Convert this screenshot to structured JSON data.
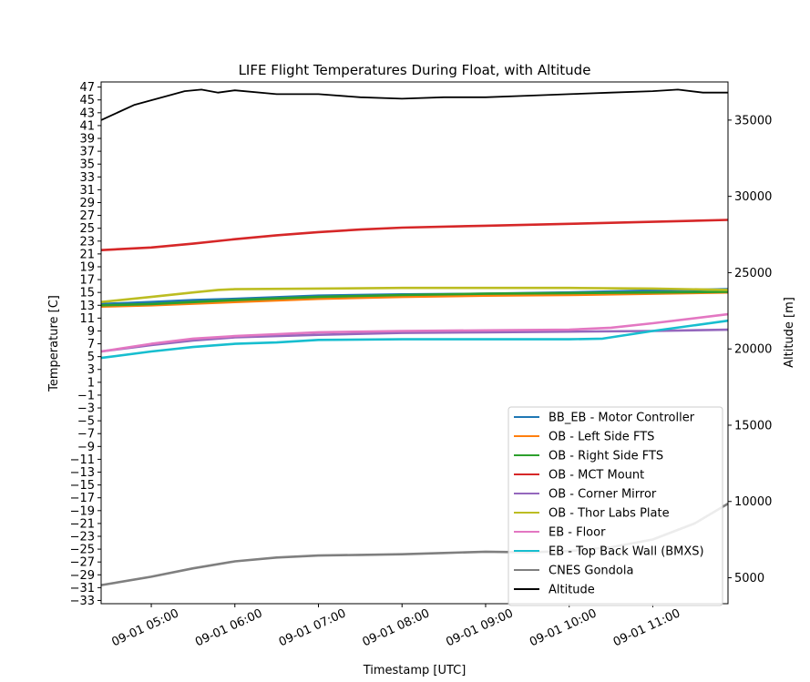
{
  "chart_data": {
    "type": "line",
    "title": "LIFE Flight Temperatures During Float, with Altitude",
    "xlabel": "Timestamp [UTC]",
    "ylabel": "Temperature [C]",
    "y2label": "Altitude [m]",
    "xlim_hours": [
      4.4,
      11.9
    ],
    "ylim": [
      -33.5,
      47.8
    ],
    "y2lim": [
      3300,
      37500
    ],
    "x_ticks": [
      {
        "h": 5,
        "label": "09-01 05:00"
      },
      {
        "h": 6,
        "label": "09-01 06:00"
      },
      {
        "h": 7,
        "label": "09-01 07:00"
      },
      {
        "h": 8,
        "label": "09-01 08:00"
      },
      {
        "h": 9,
        "label": "09-01 09:00"
      },
      {
        "h": 10,
        "label": "09-01 10:00"
      },
      {
        "h": 11,
        "label": "09-01 11:00"
      }
    ],
    "y_ticks": [
      47,
      45,
      43,
      41,
      39,
      37,
      35,
      33,
      31,
      29,
      27,
      25,
      23,
      21,
      19,
      17,
      15,
      13,
      11,
      9,
      7,
      5,
      3,
      1,
      -1,
      -3,
      -5,
      -7,
      -9,
      -11,
      -13,
      -15,
      -17,
      -19,
      -21,
      -23,
      -25,
      -27,
      -29,
      -31,
      -33
    ],
    "y_tick_labels": [
      "47",
      "45",
      "43",
      "41",
      "39",
      "37",
      "35",
      "33",
      "31",
      "29",
      "27",
      "25",
      "23",
      "21",
      "19",
      "17",
      "15",
      "13",
      "11",
      "9",
      "7",
      "5",
      "3",
      "1",
      "−1",
      "−3",
      "−5",
      "−7",
      "−9",
      "−11",
      "−13",
      "−15",
      "−17",
      "−19",
      "−21",
      "−23",
      "−25",
      "−27",
      "−29",
      "−31",
      "−33"
    ],
    "y2_ticks": [
      5000,
      10000,
      15000,
      20000,
      25000,
      30000,
      35000
    ],
    "y2_tick_labels": [
      "5000",
      "10000",
      "15000",
      "20000",
      "25000",
      "30000",
      "35000"
    ],
    "legend_position": "lower-right",
    "series": [
      {
        "name": "BB_EB - Motor Controller",
        "color": "#1f77b4",
        "axis": "left",
        "x": [
          4.4,
          5.0,
          5.5,
          6.0,
          7.0,
          8.0,
          9.0,
          10.0,
          11.0,
          11.9
        ],
        "y": [
          13.2,
          13.5,
          13.8,
          14.0,
          14.5,
          14.7,
          14.8,
          15.0,
          15.3,
          15.5
        ]
      },
      {
        "name": "OB - Left Side FTS",
        "color": "#ff7f0e",
        "axis": "left",
        "x": [
          4.4,
          5.0,
          6.0,
          7.0,
          8.0,
          9.0,
          10.0,
          11.0,
          11.9
        ],
        "y": [
          12.8,
          13.0,
          13.5,
          14.0,
          14.3,
          14.5,
          14.6,
          14.8,
          15.0
        ]
      },
      {
        "name": "OB - Right Side FTS",
        "color": "#2ca02c",
        "axis": "left",
        "x": [
          4.4,
          5.0,
          6.0,
          7.0,
          8.0,
          9.0,
          10.0,
          11.0,
          11.9
        ],
        "y": [
          13.0,
          13.2,
          13.8,
          14.3,
          14.6,
          14.8,
          14.9,
          15.0,
          15.1
        ]
      },
      {
        "name": "OB - MCT Mount",
        "color": "#d62728",
        "axis": "left",
        "x": [
          4.4,
          5.0,
          5.5,
          6.0,
          6.5,
          7.0,
          7.5,
          8.0,
          9.0,
          10.0,
          11.0,
          11.9
        ],
        "y": [
          21.6,
          22.0,
          22.6,
          23.3,
          23.9,
          24.4,
          24.8,
          25.1,
          25.4,
          25.7,
          26.0,
          26.3
        ]
      },
      {
        "name": "OB - Corner Mirror",
        "color": "#9467bd",
        "axis": "left",
        "x": [
          4.4,
          5.0,
          5.5,
          6.0,
          6.5,
          7.0,
          8.0,
          9.0,
          10.0,
          11.0,
          11.9
        ],
        "y": [
          5.8,
          6.8,
          7.5,
          8.0,
          8.2,
          8.4,
          8.7,
          8.8,
          8.9,
          9.0,
          9.2
        ]
      },
      {
        "name": "OB - Thor Labs Plate",
        "color": "#bcbd22",
        "axis": "left",
        "x": [
          4.4,
          5.0,
          5.5,
          5.8,
          6.0,
          7.0,
          8.0,
          9.0,
          10.0,
          11.0,
          11.9
        ],
        "y": [
          13.5,
          14.3,
          15.0,
          15.4,
          15.5,
          15.6,
          15.7,
          15.7,
          15.7,
          15.6,
          15.4
        ]
      },
      {
        "name": "EB - Floor",
        "color": "#e377c2",
        "axis": "left",
        "x": [
          4.4,
          5.0,
          5.5,
          6.0,
          6.5,
          7.0,
          8.0,
          9.0,
          10.0,
          10.5,
          11.0,
          11.9
        ],
        "y": [
          5.8,
          7.0,
          7.8,
          8.2,
          8.5,
          8.8,
          9.0,
          9.1,
          9.2,
          9.5,
          10.2,
          11.6
        ]
      },
      {
        "name": "EB - Top Back Wall (BMXS)",
        "color": "#17becf",
        "axis": "left",
        "x": [
          4.4,
          5.0,
          5.5,
          6.0,
          6.5,
          7.0,
          8.0,
          9.0,
          10.0,
          10.4,
          11.0,
          11.9
        ],
        "y": [
          4.8,
          5.8,
          6.5,
          7.0,
          7.2,
          7.6,
          7.7,
          7.7,
          7.7,
          7.8,
          9.0,
          10.6
        ]
      },
      {
        "name": "CNES Gondola",
        "color": "#7f7f7f",
        "axis": "left",
        "x": [
          4.4,
          5.0,
          5.5,
          6.0,
          6.5,
          7.0,
          7.5,
          8.0,
          8.5,
          9.0,
          9.5,
          10.0,
          10.5,
          11.0,
          11.5,
          11.9
        ],
        "y": [
          -30.6,
          -29.3,
          -28.0,
          -26.9,
          -26.3,
          -26.0,
          -25.9,
          -25.8,
          -25.6,
          -25.4,
          -25.5,
          -25.3,
          -24.7,
          -23.5,
          -21.0,
          -17.9
        ]
      },
      {
        "name": "Altitude",
        "color": "#000000",
        "axis": "right",
        "x": [
          4.4,
          4.6,
          4.8,
          5.0,
          5.2,
          5.4,
          5.6,
          5.8,
          6.0,
          6.5,
          7.0,
          7.5,
          8.0,
          8.5,
          9.0,
          9.5,
          10.0,
          10.5,
          11.0,
          11.3,
          11.6,
          11.9
        ],
        "y": [
          35000,
          35500,
          36000,
          36300,
          36600,
          36900,
          37000,
          36800,
          36950,
          36700,
          36700,
          36500,
          36400,
          36500,
          36500,
          36600,
          36700,
          36800,
          36900,
          37000,
          36800,
          36800
        ]
      }
    ]
  }
}
